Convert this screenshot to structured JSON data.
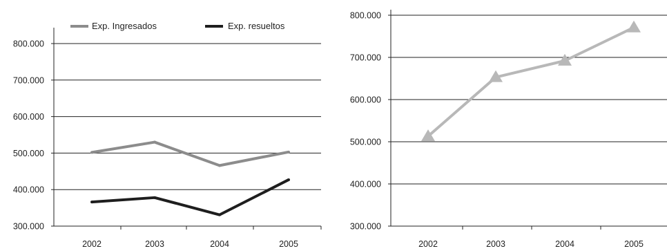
{
  "colors": {
    "ingresados": "#8c8c8c",
    "resueltos": "#1e1e1e",
    "right_series": "#b8b8b8",
    "axis": "#222222",
    "grid": "#222222"
  },
  "chart_data": [
    {
      "type": "line",
      "categories": [
        "2002",
        "2003",
        "2004",
        "2005"
      ],
      "series": [
        {
          "name": "Exp. Ingresados",
          "values": [
            502000,
            530000,
            466000,
            503000
          ],
          "color": "#8c8c8c",
          "marker": "none"
        },
        {
          "name": "Exp. resueltos",
          "values": [
            366000,
            378000,
            331000,
            427000
          ],
          "color": "#1e1e1e",
          "marker": "none"
        }
      ],
      "yticks": [
        "300.000",
        "400.000",
        "500.000",
        "600.000",
        "700.000",
        "800.000"
      ],
      "ylim": [
        300000,
        800000
      ],
      "grid": "horizontal",
      "legend": "top"
    },
    {
      "type": "line",
      "categories": [
        "2002",
        "2003",
        "2004",
        "2005"
      ],
      "series": [
        {
          "values": [
            513000,
            653000,
            692000,
            771000
          ],
          "color": "#b8b8b8",
          "marker": "triangle"
        }
      ],
      "yticks": [
        "300.000",
        "400.000",
        "500.000",
        "600.000",
        "700.000",
        "800.000"
      ],
      "ylim": [
        300000,
        800000
      ],
      "grid": "horizontal",
      "legend": "none"
    }
  ]
}
